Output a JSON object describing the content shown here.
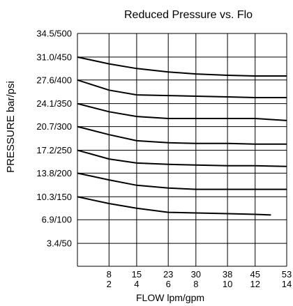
{
  "chart_data": {
    "type": "line",
    "title": "Reduced Pressure vs. Flo",
    "xlabel": "FLOW lpm/gpm",
    "ylabel": "PRESSURE bar/psi",
    "x_ticks": [
      {
        "top": "8",
        "bottom": "2",
        "value": 8
      },
      {
        "top": "15",
        "bottom": "4",
        "value": 15
      },
      {
        "top": "23",
        "bottom": "6",
        "value": 23
      },
      {
        "top": "30",
        "bottom": "8",
        "value": 30
      },
      {
        "top": "38",
        "bottom": "10",
        "value": 38
      },
      {
        "top": "45",
        "bottom": "12",
        "value": 45
      },
      {
        "top": "53",
        "bottom": "14",
        "value": 53
      }
    ],
    "y_ticks": [
      {
        "label": "34.5/500",
        "value": 34.5
      },
      {
        "label": "31.0/450",
        "value": 31.0
      },
      {
        "label": "27.6/400",
        "value": 27.6
      },
      {
        "label": "24.1/350",
        "value": 24.1
      },
      {
        "label": "20.7/300",
        "value": 20.7
      },
      {
        "label": "17.2/250",
        "value": 17.2
      },
      {
        "label": "13.8/200",
        "value": 13.8
      },
      {
        "label": "10.3/150",
        "value": 10.3
      },
      {
        "label": "6.9/100",
        "value": 6.9
      },
      {
        "label": "3.4/50",
        "value": 3.4
      }
    ],
    "xlim": [
      0,
      53
    ],
    "ylim": [
      0,
      34.5
    ],
    "grid": true,
    "series": [
      {
        "x": [
          0,
          8,
          15,
          23,
          30,
          38,
          45,
          53
        ],
        "y": [
          31.0,
          30.0,
          29.3,
          28.8,
          28.5,
          28.3,
          28.2,
          28.2
        ]
      },
      {
        "x": [
          0,
          8,
          15,
          23,
          30,
          38,
          45,
          53
        ],
        "y": [
          27.6,
          26.1,
          25.4,
          25.3,
          25.2,
          25.1,
          25.0,
          25.0
        ]
      },
      {
        "x": [
          0,
          8,
          15,
          23,
          30,
          38,
          45,
          53
        ],
        "y": [
          24.1,
          22.9,
          22.2,
          21.9,
          21.9,
          21.9,
          21.9,
          21.6
        ]
      },
      {
        "x": [
          0,
          8,
          15,
          23,
          30,
          38,
          45,
          53
        ],
        "y": [
          20.7,
          19.5,
          18.6,
          18.3,
          18.2,
          18.2,
          18.1,
          18.1
        ]
      },
      {
        "x": [
          0,
          8,
          15,
          23,
          30,
          38,
          45,
          53
        ],
        "y": [
          17.2,
          15.9,
          15.3,
          15.1,
          15.0,
          14.9,
          14.9,
          14.8
        ]
      },
      {
        "x": [
          0,
          8,
          15,
          23,
          30,
          38,
          45,
          53
        ],
        "y": [
          13.8,
          12.8,
          12.0,
          11.6,
          11.4,
          11.4,
          11.4,
          11.4
        ]
      },
      {
        "x": [
          0,
          8,
          15,
          23,
          30,
          38,
          45,
          49
        ],
        "y": [
          10.3,
          9.3,
          8.6,
          8.0,
          7.9,
          7.8,
          7.7,
          7.6
        ]
      }
    ]
  }
}
